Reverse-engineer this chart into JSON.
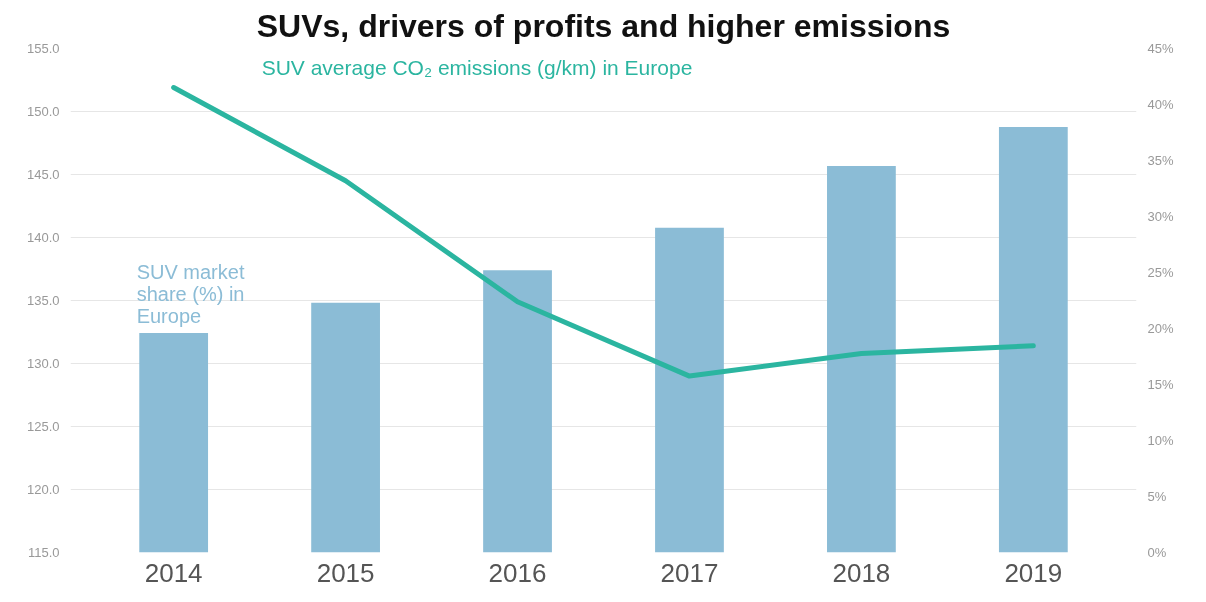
{
  "chart_data": {
    "type": "bar",
    "title": "SUVs, drivers of profits and higher emissions",
    "categories": [
      "2014",
      "2015",
      "2016",
      "2017",
      "2018",
      "2019"
    ],
    "series": [
      {
        "name": "SUV market share (%) in Europe",
        "axis": "y2",
        "color": "#8bbcd6",
        "values": [
          19.6,
          22.3,
          25.2,
          29.0,
          34.5,
          38.0
        ]
      },
      {
        "name": "SUV average CO₂ emissions (g/km) in Europe",
        "type": "line",
        "color": "#2bb5a0",
        "values": [
          151.9,
          144.5,
          134.9,
          129.0,
          130.8,
          131.4
        ]
      }
    ],
    "ylim": [
      115,
      155
    ],
    "yticks": [
      {
        "value": 115,
        "label": "115.0"
      },
      {
        "value": 120,
        "label": "120.0"
      },
      {
        "value": 125,
        "label": "125.0"
      },
      {
        "value": 130,
        "label": "130.0"
      },
      {
        "value": 135,
        "label": "135.0"
      },
      {
        "value": 140,
        "label": "140.0"
      },
      {
        "value": 145,
        "label": "145.0"
      },
      {
        "value": 150,
        "label": "150.0"
      },
      {
        "value": 155,
        "label": "155.0"
      }
    ],
    "y2lim": [
      0,
      45
    ],
    "y2ticks": [
      {
        "value": 0,
        "label": "0%"
      },
      {
        "value": 5,
        "label": "5%"
      },
      {
        "value": 10,
        "label": "10%"
      },
      {
        "value": 15,
        "label": "15%"
      },
      {
        "value": 20,
        "label": "20%"
      },
      {
        "value": 25,
        "label": "25%"
      },
      {
        "value": 30,
        "label": "30%"
      },
      {
        "value": 35,
        "label": "35%"
      },
      {
        "value": 40,
        "label": "40%"
      },
      {
        "value": 45,
        "label": "45%"
      }
    ],
    "grid": "y",
    "legend": false,
    "marker": "none",
    "line_style": "solid"
  }
}
